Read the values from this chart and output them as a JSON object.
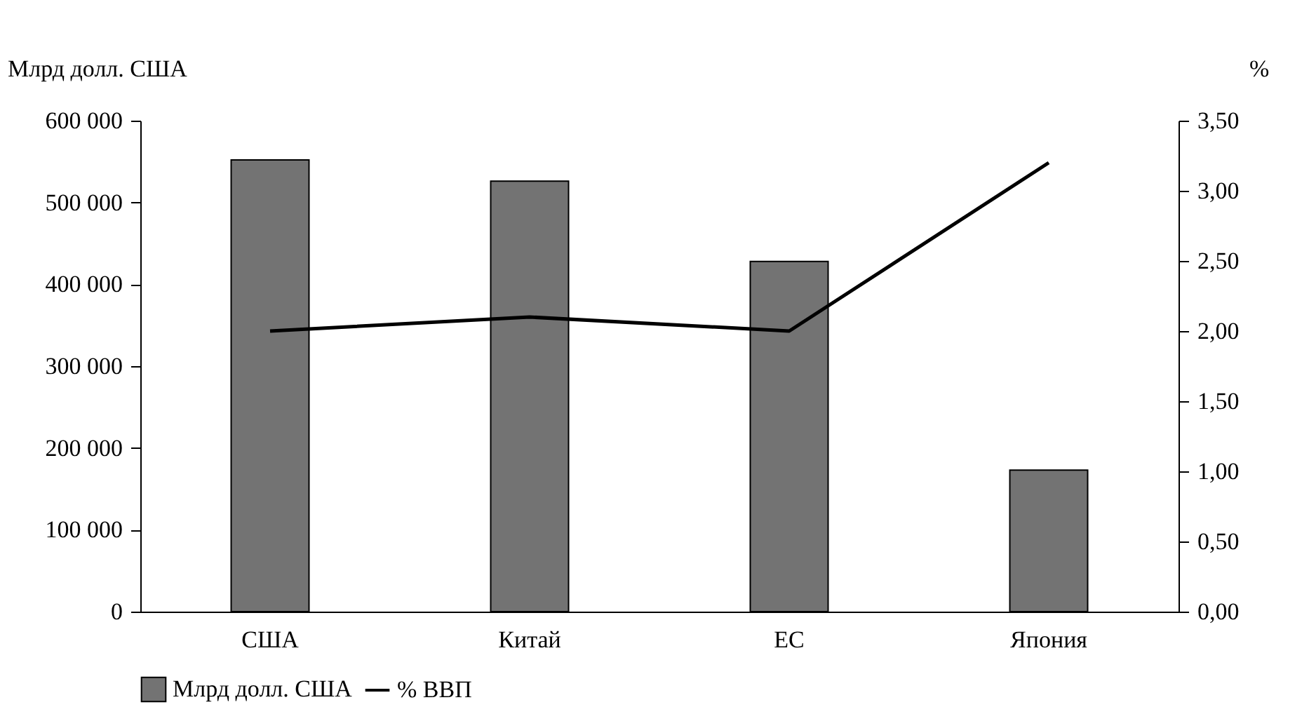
{
  "chart_data": {
    "type": "bar",
    "categories": [
      "США",
      "Китай",
      "ЕС",
      "Япония"
    ],
    "ylabel": "Млрд долл. США",
    "y2label": "%",
    "ylim": [
      0,
      600000
    ],
    "yticks": [
      0,
      {
        "value": 100000,
        "label": "100 000"
      },
      {
        "value": 200000,
        "label": "200 000"
      },
      {
        "value": 300000,
        "label": "300 000"
      },
      {
        "value": 400000,
        "label": "400 000"
      },
      {
        "value": 500000,
        "label": "500 000"
      },
      {
        "value": 600000,
        "label": "600 000"
      }
    ],
    "y2lim": [
      0,
      3.5
    ],
    "y2ticks": [
      {
        "value": 0,
        "label": "0,00"
      },
      {
        "value": 0.5,
        "label": "0,50"
      },
      {
        "value": 1,
        "label": "1,00"
      },
      {
        "value": 1.5,
        "label": "1,50"
      },
      {
        "value": 2,
        "label": "2,00"
      },
      {
        "value": 2.5,
        "label": "2,50"
      },
      {
        "value": 3,
        "label": "3,00"
      },
      {
        "value": 3.5,
        "label": "3,50"
      }
    ],
    "series": [
      {
        "name": "Млрд долл. США",
        "color": "#737373",
        "values": [
          552000,
          526000,
          428000,
          173000
        ]
      },
      {
        "name": "% ВВП",
        "type": "line",
        "axis": "y2",
        "color": "#000000",
        "values": [
          2.0,
          2.1,
          2.0,
          3.2
        ]
      }
    ],
    "grid": false,
    "legend": "bottom",
    "line_style": "solid",
    "marker": "none"
  }
}
